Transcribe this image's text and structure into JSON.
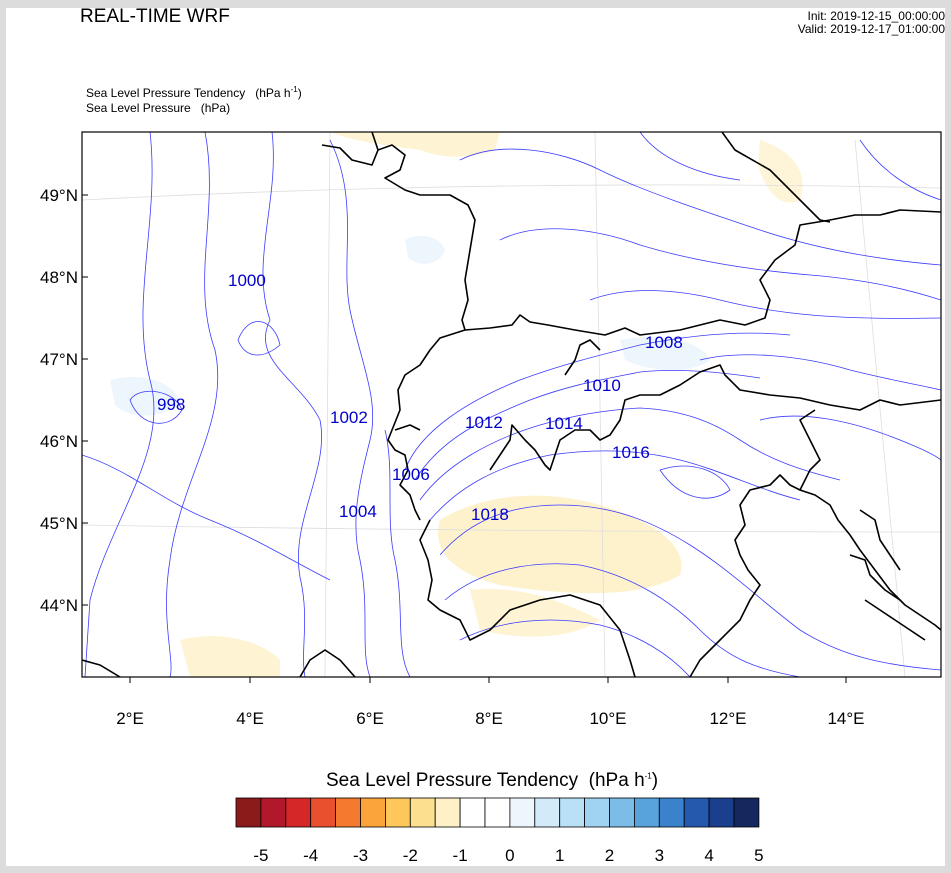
{
  "header": {
    "title": "REAL-TIME WRF",
    "init": "Init: 2019-12-15_00:00:00",
    "valid": "Valid: 2019-12-17_01:00:00"
  },
  "fields": {
    "shaded": {
      "name": "Sea Level Pressure Tendency",
      "units": "(hPa h",
      "units_exp": "-1",
      "units_end": ")"
    },
    "contour": {
      "name": "Sea Level Pressure",
      "units": "(hPa)"
    }
  },
  "map": {
    "lat_labels": [
      "49°N",
      "48°N",
      "47°N",
      "46°N",
      "45°N",
      "44°N"
    ],
    "lon_labels": [
      "2°E",
      "4°E",
      "6°E",
      "8°E",
      "10°E",
      "12°E",
      "14°E"
    ],
    "contour_labels": [
      "1000",
      "998",
      "1002",
      "1006",
      "1004",
      "1012",
      "1014",
      "1010",
      "1008",
      "1016",
      "1018"
    ],
    "colors": {
      "contour": "#3b3bff",
      "border": "#000000",
      "label": "#0000cc"
    }
  },
  "colorbar": {
    "title": "Sea Level Pressure Tendency",
    "units": "(hPa h",
    "units_exp": "-1",
    "units_end": ")",
    "labels": [
      "-5",
      "-4",
      "-3",
      "-2",
      "-1",
      "0",
      "1",
      "2",
      "3",
      "4",
      "5"
    ],
    "colors": [
      "#8b1a1a",
      "#b2182b",
      "#d62728",
      "#e8502e",
      "#f47a30",
      "#fba43a",
      "#fdc75c",
      "#fde08f",
      "#fef1c8",
      "#ffffff",
      "#ffffff",
      "#eef6fd",
      "#d3ebf9",
      "#b8e0f6",
      "#9fd3f1",
      "#7bbde8",
      "#58a3dc",
      "#3b82cc",
      "#2459ad",
      "#1b3f8c",
      "#15285e"
    ]
  }
}
